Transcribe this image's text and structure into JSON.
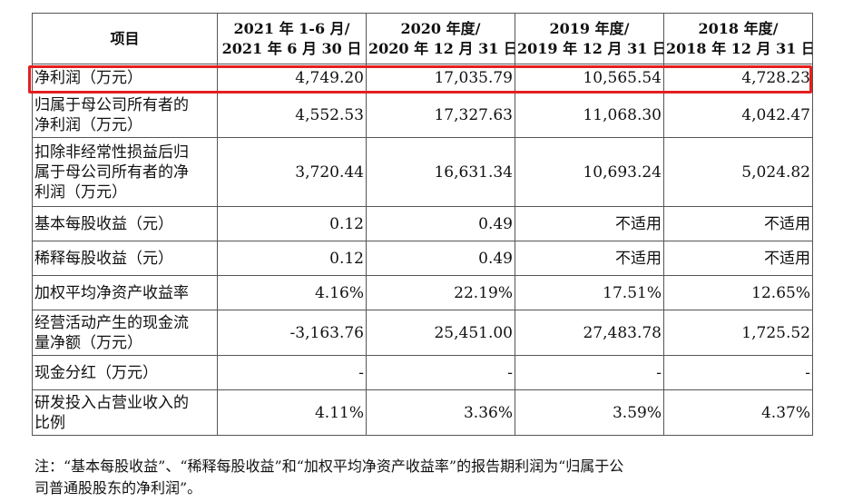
{
  "table": {
    "headers": [
      {
        "line1": "项目",
        "line2": ""
      },
      {
        "line1": "2021 年 1-6 月/",
        "line2": "2021 年 6 月 30 日"
      },
      {
        "line1": "2020 年度/",
        "line2": "2020 年 12 月 31 日"
      },
      {
        "line1": "2019 年度/",
        "line2": "2019 年 12 月 31 日"
      },
      {
        "line1": "2018 年度/",
        "line2": "2018 年 12 月 31 日"
      }
    ],
    "rows": [
      {
        "label": [
          "净利润（万元）"
        ],
        "values": [
          "4,749.20",
          "17,035.79",
          "10,565.54",
          "4,728.23"
        ]
      },
      {
        "label": [
          "归属于母公司所有者的",
          "净利润（万元）"
        ],
        "values": [
          "4,552.53",
          "17,327.63",
          "11,068.30",
          "4,042.47"
        ]
      },
      {
        "label": [
          "扣除非经常性损益后归",
          "属于母公司所有者的净",
          "利润（万元）"
        ],
        "values": [
          "3,720.44",
          "16,631.34",
          "10,693.24",
          "5,024.82"
        ]
      },
      {
        "label": [
          "基本每股收益（元）"
        ],
        "values": [
          "0.12",
          "0.49",
          "不适用",
          "不适用"
        ]
      },
      {
        "label": [
          "稀释每股收益（元）"
        ],
        "values": [
          "0.12",
          "0.49",
          "不适用",
          "不适用"
        ]
      },
      {
        "label": [
          "加权平均净资产收益率"
        ],
        "values": [
          "4.16%",
          "22.19%",
          "17.51%",
          "12.65%"
        ]
      },
      {
        "label": [
          "经营活动产生的现金流",
          "量净额（万元）"
        ],
        "values": [
          "-3,163.76",
          "25,451.00",
          "27,483.78",
          "1,725.52"
        ]
      },
      {
        "label": [
          "现金分红（万元）"
        ],
        "values": [
          "-",
          "-",
          "-",
          "-"
        ]
      },
      {
        "label": [
          "研发投入占营业收入的",
          "比例"
        ],
        "values": [
          "4.11%",
          "3.36%",
          "3.59%",
          "4.37%"
        ]
      }
    ]
  },
  "note": {
    "line1": "注：“基本每股收益”、“稀释每股收益”和“加权平均净资产收益率”的报告期利润为“归属于公",
    "line2": "司普通股股东的净利润”。"
  },
  "colors": {
    "highlight": "#e51f1f",
    "border": "#555555"
  }
}
